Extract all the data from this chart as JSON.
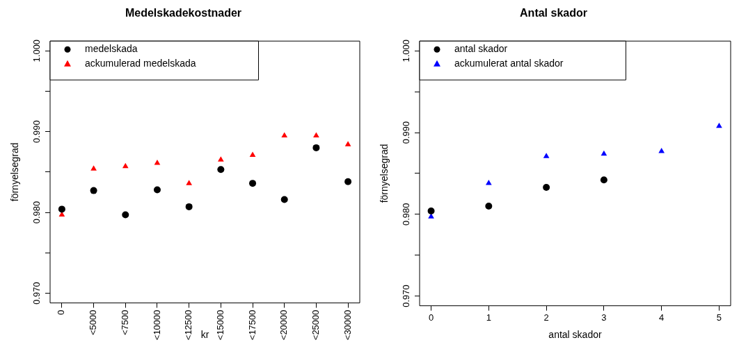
{
  "chart_data": [
    {
      "type": "scatter",
      "title": "Medelskadekostnader",
      "xlabel": "kr",
      "ylabel": "förnyelsegrad",
      "categories": [
        "0",
        "<5000",
        "<7500",
        "<10000",
        "<12500",
        "<15000",
        "<17500",
        "<20000",
        "<25000",
        "<30000"
      ],
      "series": [
        {
          "name": "medelskada",
          "color": "#000000",
          "marker": "circle",
          "values": [
            0.9804,
            0.9827,
            0.9797,
            0.9828,
            0.9807,
            0.9853,
            0.9836,
            0.9816,
            0.988,
            0.9838
          ]
        },
        {
          "name": "ackumulerad medelskada",
          "color": "#ff0000",
          "marker": "triangle",
          "values": [
            0.9797,
            0.9854,
            0.9857,
            0.9861,
            0.9836,
            0.9865,
            0.9871,
            0.9895,
            0.9895,
            0.9884
          ]
        }
      ],
      "ylim": [
        0.9688,
        1.0012
      ],
      "yticks": [
        {
          "value": 0.97,
          "label": "0.970"
        },
        {
          "value": 0.975,
          "label": null
        },
        {
          "value": 0.98,
          "label": "0.980"
        },
        {
          "value": 0.985,
          "label": null
        },
        {
          "value": 0.99,
          "label": "0.990"
        },
        {
          "value": 0.995,
          "label": null
        },
        {
          "value": 1.0,
          "label": "1.000"
        }
      ],
      "legend": "top left",
      "grid": false
    },
    {
      "type": "scatter",
      "title": "Antal skador",
      "xlabel": "antal skador",
      "ylabel": "förnyelsegrad",
      "x": [
        0,
        1,
        2,
        3,
        4,
        5
      ],
      "series": [
        {
          "name": "antal skador",
          "color": "#000000",
          "marker": "circle",
          "values": [
            0.9804,
            0.981,
            0.9833,
            0.9842,
            null,
            null
          ]
        },
        {
          "name": "ackumulerat antal skador",
          "color": "#0000ff",
          "marker": "triangle",
          "values": [
            0.9797,
            0.9838,
            0.9871,
            0.9874,
            0.9877,
            0.9908
          ]
        }
      ],
      "xlim": [
        -0.2,
        5.2
      ],
      "xticks": [
        0,
        1,
        2,
        3,
        4,
        5
      ],
      "ylim": [
        0.9688,
        1.0012
      ],
      "yticks": [
        {
          "value": 0.97,
          "label": "0.970"
        },
        {
          "value": 0.975,
          "label": null
        },
        {
          "value": 0.98,
          "label": "0.980"
        },
        {
          "value": 0.985,
          "label": null
        },
        {
          "value": 0.99,
          "label": "0.990"
        },
        {
          "value": 0.995,
          "label": null
        },
        {
          "value": 1.0,
          "label": "1.000"
        }
      ],
      "legend": "top left",
      "grid": false
    }
  ]
}
